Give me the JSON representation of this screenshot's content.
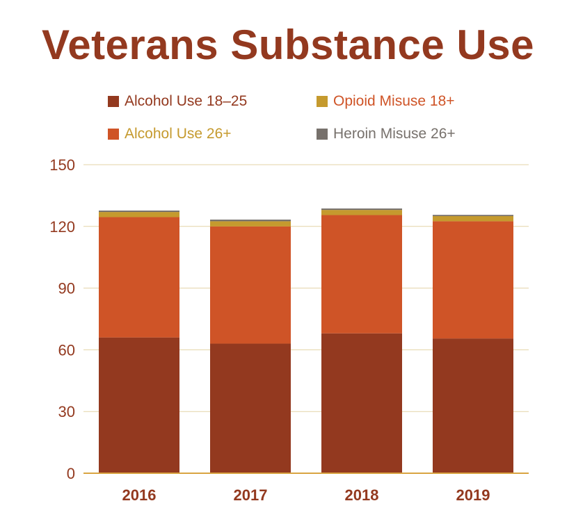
{
  "chart_data": {
    "type": "bar",
    "stacked": true,
    "title": "Veterans Substance Use",
    "categories": [
      "2016",
      "2017",
      "2018",
      "2019"
    ],
    "series": [
      {
        "name": "Alcohol Use 18–25",
        "color": "#93391f",
        "values": [
          66,
          63,
          68,
          65.5
        ]
      },
      {
        "name": "Alcohol Use 26+",
        "color": "#cf5427",
        "values": [
          58.5,
          57,
          57.5,
          57
        ]
      },
      {
        "name": "Opioid Misuse 18+",
        "color": "#c59a2e",
        "values": [
          2.5,
          2.5,
          2.5,
          2.5
        ]
      },
      {
        "name": "Heroin Misuse 26+",
        "color": "#77716c",
        "values": [
          0.7,
          0.8,
          0.7,
          0.6
        ]
      }
    ],
    "yticks": [
      0,
      30,
      60,
      90,
      120,
      150
    ],
    "ylim": [
      0,
      150
    ],
    "grid": true,
    "legend_position": "top"
  }
}
